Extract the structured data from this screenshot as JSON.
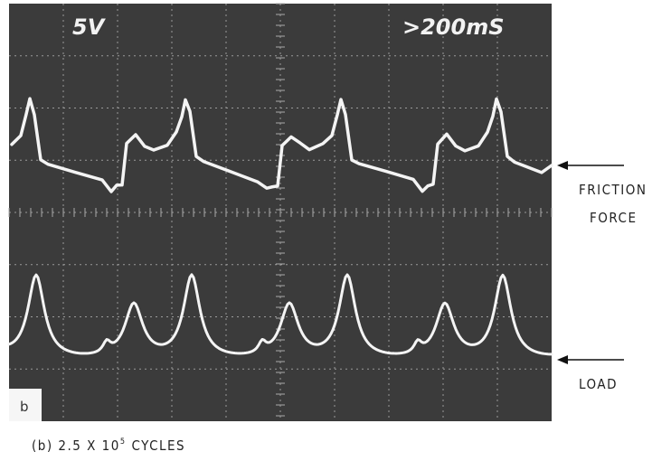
{
  "screen": {
    "volts_per_div": "5V",
    "time_per_div": ">200mS",
    "panel_label": "b"
  },
  "labels": {
    "friction_line1": "FRICTION",
    "friction_line2": "FORCE",
    "load": "LOAD"
  },
  "caption": {
    "prefix": "(b) 2.5 X 10",
    "exponent": "5",
    "suffix": "CYCLES"
  }
}
